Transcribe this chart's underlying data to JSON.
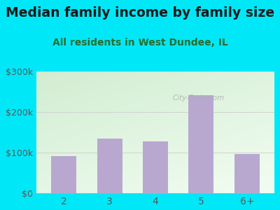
{
  "title": "Median family income by family size",
  "subtitle": "All residents in West Dundee, IL",
  "categories": [
    "2",
    "3",
    "4",
    "5",
    "6+"
  ],
  "values": [
    92000,
    135000,
    128000,
    242000,
    96000
  ],
  "bar_color": "#b8a8d0",
  "ylim": [
    0,
    300000
  ],
  "ytick_labels": [
    "$0",
    "$100k",
    "$200k",
    "$300k"
  ],
  "ytick_values": [
    0,
    100000,
    200000,
    300000
  ],
  "background_outer": "#00e8f8",
  "plot_bg_color": "#e8f5e9",
  "title_color": "#1a1a1a",
  "subtitle_color": "#2d6a2d",
  "tick_color": "#555555",
  "watermark": "City-Data.com",
  "title_fontsize": 13.5,
  "subtitle_fontsize": 10
}
